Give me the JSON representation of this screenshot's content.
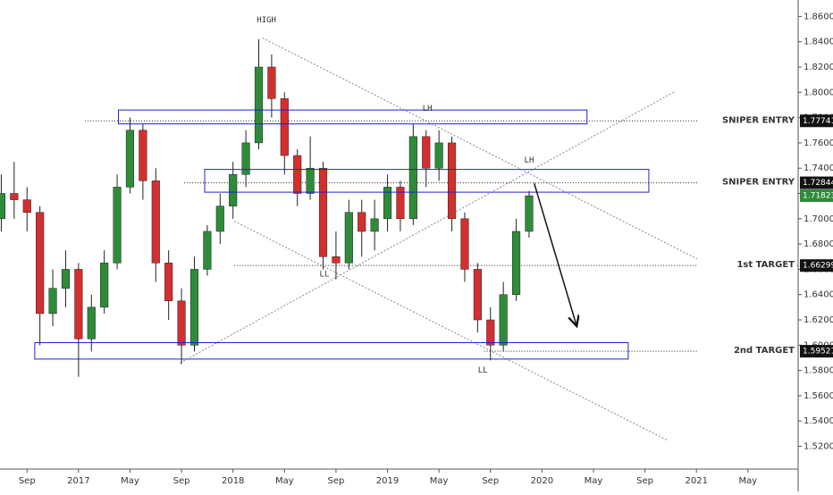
{
  "chart_data": {
    "type": "candlestick",
    "xlim": [
      5.9,
      67.9
    ],
    "ylim": [
      1.502,
      1.873
    ],
    "xticks": [
      {
        "value": 8,
        "label": "Sep"
      },
      {
        "value": 12,
        "label": "2017"
      },
      {
        "value": 16,
        "label": "May"
      },
      {
        "value": 20,
        "label": "Sep"
      },
      {
        "value": 24,
        "label": "2018"
      },
      {
        "value": 28,
        "label": "May"
      },
      {
        "value": 32,
        "label": "Sep"
      },
      {
        "value": 36,
        "label": "2019"
      },
      {
        "value": 40,
        "label": "May"
      },
      {
        "value": 44,
        "label": "Sep"
      },
      {
        "value": 48,
        "label": "2020"
      },
      {
        "value": 52,
        "label": "May"
      },
      {
        "value": 56,
        "label": "Sep"
      },
      {
        "value": 60,
        "label": "2021"
      },
      {
        "value": 64,
        "label": "May"
      }
    ],
    "yticks": [
      {
        "value": 1.52,
        "label": "1.52000"
      },
      {
        "value": 1.54,
        "label": "1.54000"
      },
      {
        "value": 1.56,
        "label": "1.56000"
      },
      {
        "value": 1.58,
        "label": "1.58000"
      },
      {
        "value": 1.6,
        "label": "1.60000"
      },
      {
        "value": 1.62,
        "label": "1.62000"
      },
      {
        "value": 1.64,
        "label": "1.64000"
      },
      {
        "value": 1.66,
        "label": "1.66000"
      },
      {
        "value": 1.68,
        "label": "1.68000"
      },
      {
        "value": 1.7,
        "label": "1.70000"
      },
      {
        "value": 1.72,
        "label": "1.72000"
      },
      {
        "value": 1.74,
        "label": "1.74000"
      },
      {
        "value": 1.76,
        "label": "1.76000"
      },
      {
        "value": 1.78,
        "label": "1.78000"
      },
      {
        "value": 1.8,
        "label": "1.80000"
      },
      {
        "value": 1.82,
        "label": "1.82000"
      },
      {
        "value": 1.84,
        "label": "1.84000"
      },
      {
        "value": 1.86,
        "label": "1.86000"
      }
    ],
    "up_color": "#2e8b3a",
    "down_color": "#d32f2f",
    "candles": {
      "x": [
        6,
        7,
        8,
        9,
        10,
        11,
        12,
        13,
        14,
        15,
        16,
        17,
        18,
        19,
        20,
        21,
        22,
        23,
        24,
        25,
        26,
        27,
        28,
        29,
        30,
        31,
        32,
        33,
        34,
        35,
        36,
        37,
        38,
        39,
        40,
        41,
        42,
        43,
        44,
        45,
        46,
        47
      ],
      "open": [
        1.7,
        1.72,
        1.715,
        1.705,
        1.625,
        1.645,
        1.66,
        1.605,
        1.63,
        1.665,
        1.725,
        1.77,
        1.73,
        1.665,
        1.635,
        1.6,
        1.66,
        1.69,
        1.71,
        1.735,
        1.76,
        1.82,
        1.795,
        1.75,
        1.72,
        1.74,
        1.67,
        1.665,
        1.705,
        1.69,
        1.7,
        1.725,
        1.7,
        1.765,
        1.74,
        1.76,
        1.7,
        1.66,
        1.62,
        1.6,
        1.64,
        1.69
      ],
      "high": [
        1.735,
        1.745,
        1.725,
        1.71,
        1.66,
        1.675,
        1.665,
        1.64,
        1.675,
        1.735,
        1.78,
        1.775,
        1.74,
        1.675,
        1.645,
        1.67,
        1.695,
        1.72,
        1.745,
        1.77,
        1.842,
        1.83,
        1.8,
        1.755,
        1.765,
        1.745,
        1.69,
        1.715,
        1.715,
        1.715,
        1.735,
        1.73,
        1.775,
        1.77,
        1.77,
        1.765,
        1.705,
        1.665,
        1.63,
        1.65,
        1.7,
        1.722
      ],
      "low": [
        1.69,
        1.7,
        1.69,
        1.6,
        1.615,
        1.63,
        1.575,
        1.595,
        1.625,
        1.66,
        1.72,
        1.715,
        1.65,
        1.62,
        1.585,
        1.595,
        1.655,
        1.68,
        1.7,
        1.725,
        1.755,
        1.78,
        1.735,
        1.71,
        1.715,
        1.66,
        1.652,
        1.66,
        1.67,
        1.675,
        1.69,
        1.69,
        1.695,
        1.725,
        1.73,
        1.69,
        1.65,
        1.61,
        1.588,
        1.595,
        1.635,
        1.685
      ],
      "close": [
        1.72,
        1.715,
        1.705,
        1.625,
        1.645,
        1.66,
        1.605,
        1.63,
        1.665,
        1.725,
        1.77,
        1.73,
        1.665,
        1.635,
        1.6,
        1.66,
        1.69,
        1.71,
        1.735,
        1.76,
        1.82,
        1.795,
        1.75,
        1.72,
        1.74,
        1.67,
        1.665,
        1.705,
        1.69,
        1.7,
        1.725,
        1.7,
        1.765,
        1.74,
        1.76,
        1.7,
        1.66,
        1.62,
        1.6,
        1.64,
        1.69,
        1.71823
      ]
    },
    "last_price": 1.71823,
    "last_color": "#2e8b3a",
    "levels": [
      {
        "price": 1.77741,
        "name": "SNIPER ENTRY",
        "from": 12.5
      },
      {
        "price": 1.72844,
        "name": "SNIPER ENTRY",
        "from": 20.2
      },
      {
        "price": 1.66299,
        "name": "1st TARGET",
        "from": 24.1
      },
      {
        "price": 1.59521,
        "name": "2nd TARGET",
        "from": 43.5
      }
    ],
    "boxes": [
      {
        "x": [
          15.1,
          51.5
        ],
        "y": [
          1.775,
          1.786
        ]
      },
      {
        "x": [
          21.8,
          56.3
        ],
        "y": [
          1.721,
          1.739
        ]
      },
      {
        "x": [
          8.6,
          54.7
        ],
        "y": [
          1.589,
          1.602
        ]
      }
    ],
    "box_color": "#2222cc",
    "trendlines": [
      {
        "x": [
          26.3,
          60.1
        ],
        "y": [
          1.843,
          1.668
        ]
      },
      {
        "x": [
          24.1,
          57.7
        ],
        "y": [
          1.698,
          1.525
        ]
      },
      {
        "x": [
          19.9,
          58.4
        ],
        "y": [
          1.586,
          1.801
        ]
      }
    ],
    "arrow": {
      "x": [
        47.4,
        50.7
      ],
      "y": [
        1.728,
        1.615
      ]
    },
    "annotations": [
      {
        "text": "HIGH",
        "x": 26.6,
        "y": 1.857
      },
      {
        "text": "LH",
        "x": 39.1,
        "y": 1.787
      },
      {
        "text": "LH",
        "x": 47.0,
        "y": 1.746
      },
      {
        "text": "LL",
        "x": 31.1,
        "y": 1.656
      },
      {
        "text": "LL",
        "x": 43.4,
        "y": 1.58
      }
    ]
  }
}
